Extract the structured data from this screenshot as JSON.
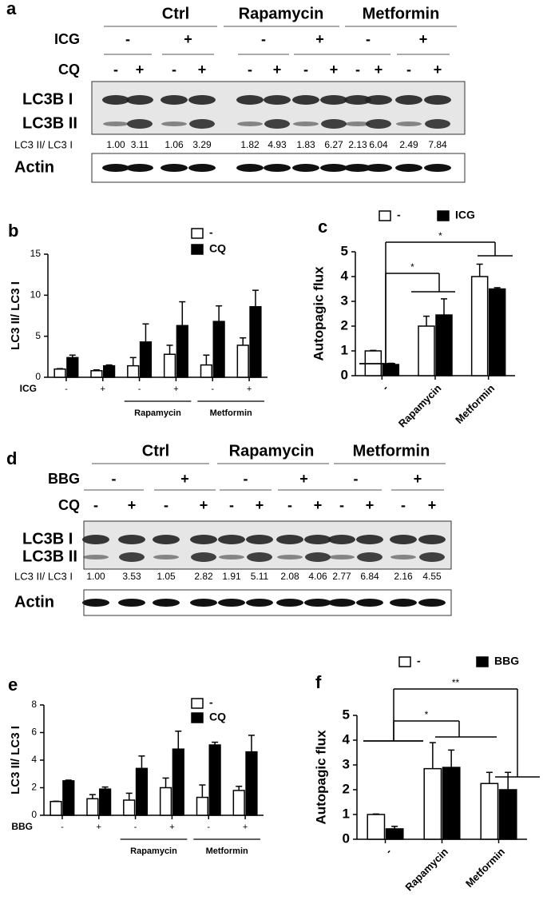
{
  "blots": [
    {
      "label": "a",
      "conditions": [
        "Ctrl",
        "Rapamycin",
        "Metformin"
      ],
      "treatment": "ICG",
      "treatment_signs": [
        "-",
        "+",
        "-",
        "+",
        "-",
        "+"
      ],
      "cq": "CQ",
      "cq_signs": [
        "-",
        "+",
        "-",
        "+",
        "-",
        "+",
        "-",
        "+",
        "-",
        "+",
        "-",
        "+"
      ],
      "bands": [
        "LC3B I",
        "LC3B II"
      ],
      "ratio_label": "LC3 II/ LC3 I",
      "ratios": [
        "1.00",
        "3.11",
        "1.06",
        "3.29",
        "1.82",
        "4.93",
        "1.83",
        "6.27",
        "2.13",
        "6.04",
        "2.49",
        "7.84"
      ],
      "loading": "Actin"
    },
    {
      "label": "d",
      "conditions": [
        "Ctrl",
        "Rapamycin",
        "Metformin"
      ],
      "treatment": "BBG",
      "treatment_signs": [
        "-",
        "+",
        "-",
        "+",
        "-",
        "+"
      ],
      "cq": "CQ",
      "cq_signs": [
        "-",
        "+",
        "-",
        "+",
        "-",
        "+",
        "-",
        "+",
        "-",
        "+",
        "-",
        "+"
      ],
      "bands": [
        "LC3B I",
        "LC3B II"
      ],
      "ratio_label": "LC3 II/ LC3 I",
      "ratios": [
        "1.00",
        "3.53",
        "1.05",
        "2.82",
        "1.91",
        "5.11",
        "2.08",
        "4.06",
        "2.77",
        "6.84",
        "2.16",
        "4.55"
      ],
      "loading": "Actin"
    }
  ],
  "chart_data": [
    {
      "type": "bar",
      "panel": "b",
      "ylabel": "LC3 II/ LC3 I",
      "row_label": "ICG",
      "categories": [
        "-",
        "+",
        "-",
        "+",
        "-",
        "+"
      ],
      "groups": [
        "Rapamycin",
        "Metformin"
      ],
      "series": [
        {
          "name": "-",
          "color": "#ffffff",
          "values": [
            1.0,
            0.8,
            1.4,
            2.8,
            1.5,
            3.9
          ],
          "errors": [
            0.05,
            0.1,
            1.0,
            1.1,
            1.2,
            0.9
          ]
        },
        {
          "name": "CQ",
          "color": "#000000",
          "values": [
            2.4,
            1.4,
            4.3,
            6.3,
            6.8,
            8.6
          ],
          "errors": [
            0.3,
            0.1,
            2.2,
            2.9,
            1.9,
            2.0
          ]
        }
      ],
      "ylim": [
        0,
        15
      ],
      "yticks": [
        0,
        5,
        10,
        15
      ]
    },
    {
      "type": "bar",
      "panel": "c",
      "ylabel": "Autopagic flux",
      "categories": [
        "-",
        "Rapamycin",
        "Metformin"
      ],
      "series": [
        {
          "name": "-",
          "color": "#ffffff",
          "values": [
            1.0,
            2.0,
            4.0
          ],
          "errors": [
            0.02,
            0.4,
            0.5
          ]
        },
        {
          "name": "ICG",
          "color": "#000000",
          "values": [
            0.45,
            2.45,
            3.5
          ],
          "errors": [
            0.05,
            0.65,
            0.05
          ]
        }
      ],
      "ylim": [
        0,
        5
      ],
      "yticks": [
        0,
        1,
        2,
        3,
        4,
        5
      ],
      "annotations": [
        "*",
        "*"
      ]
    },
    {
      "type": "bar",
      "panel": "e",
      "ylabel": "LC3 II/ LC3 I",
      "row_label": "BBG",
      "categories": [
        "-",
        "+",
        "-",
        "+",
        "-",
        "+"
      ],
      "groups": [
        "Rapamycin",
        "Metformin"
      ],
      "series": [
        {
          "name": "-",
          "color": "#ffffff",
          "values": [
            1.0,
            1.2,
            1.1,
            2.0,
            1.3,
            1.8
          ],
          "errors": [
            0.02,
            0.3,
            0.5,
            0.7,
            0.9,
            0.3
          ]
        },
        {
          "name": "CQ",
          "color": "#000000",
          "values": [
            2.5,
            1.9,
            3.4,
            4.8,
            5.1,
            4.6
          ],
          "errors": [
            0.05,
            0.15,
            0.9,
            1.3,
            0.2,
            1.2
          ]
        }
      ],
      "ylim": [
        0,
        8
      ],
      "yticks": [
        0,
        2,
        4,
        6,
        8
      ]
    },
    {
      "type": "bar",
      "panel": "f",
      "ylabel": "Autopagic flux",
      "categories": [
        "-",
        "Rapamycin",
        "Metformin"
      ],
      "series": [
        {
          "name": "-",
          "color": "#ffffff",
          "values": [
            1.0,
            2.85,
            2.25
          ],
          "errors": [
            0.02,
            1.05,
            0.45
          ]
        },
        {
          "name": "BBG",
          "color": "#000000",
          "values": [
            0.42,
            2.9,
            2.0
          ],
          "errors": [
            0.1,
            0.7,
            0.7
          ]
        }
      ],
      "ylim": [
        0,
        5
      ],
      "yticks": [
        0,
        1,
        2,
        3,
        4,
        5
      ],
      "annotations": [
        "**",
        "*"
      ]
    }
  ]
}
